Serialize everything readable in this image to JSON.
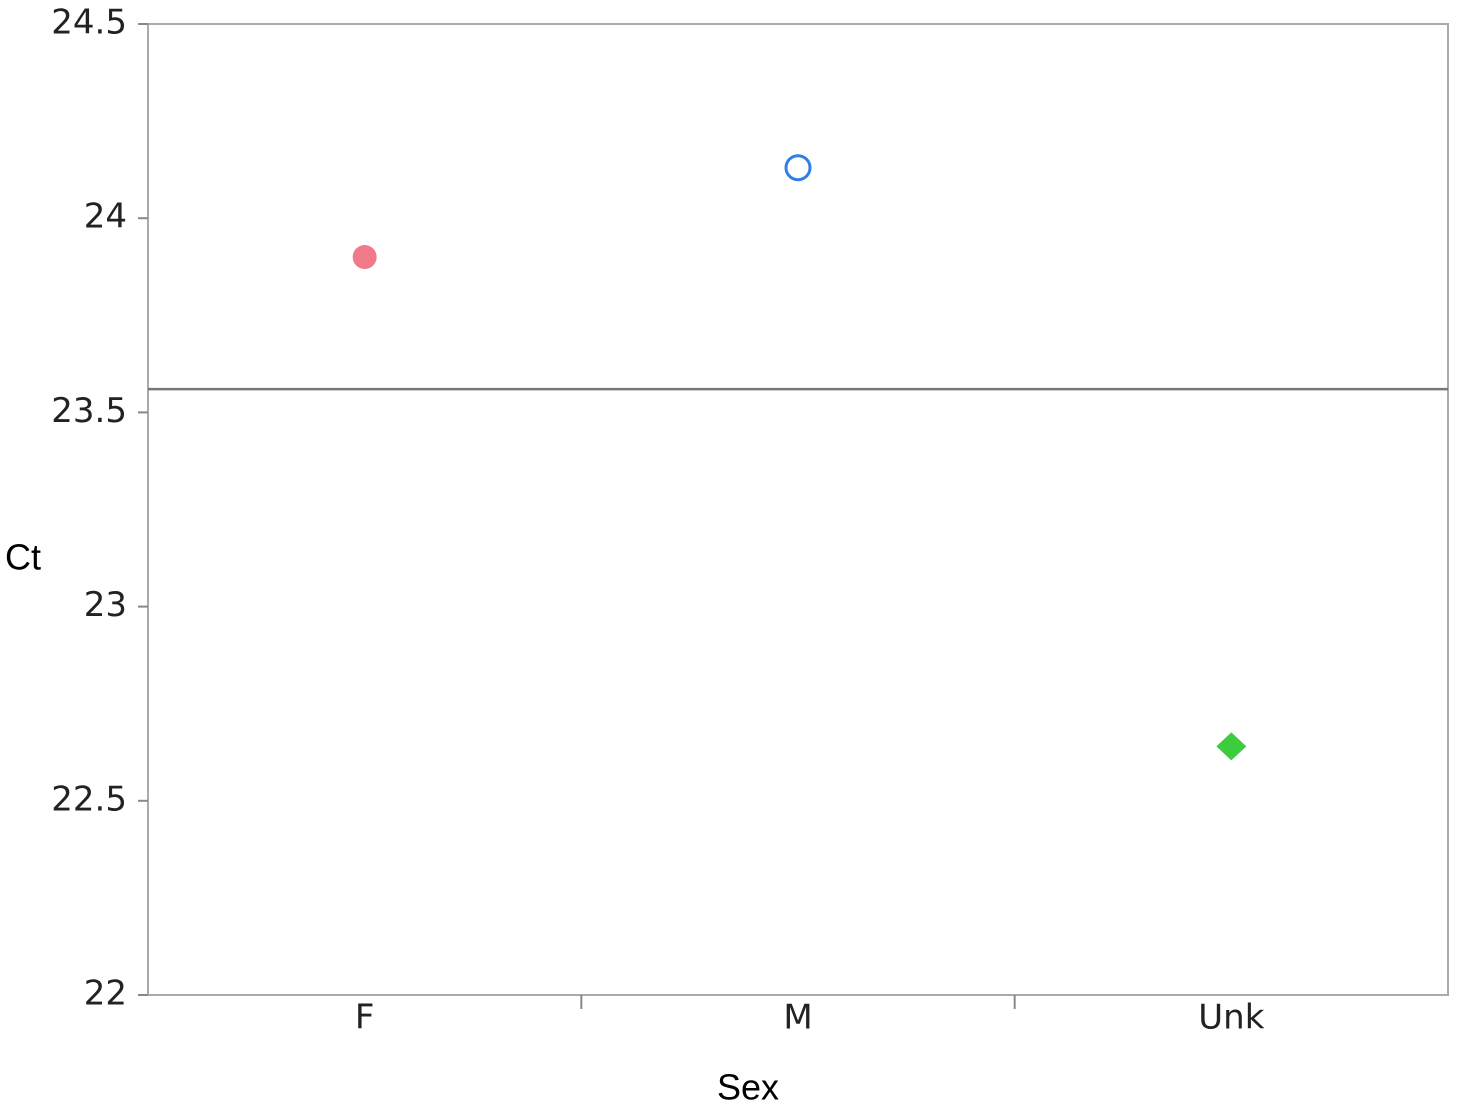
{
  "chart_data": {
    "type": "point",
    "x_label": "Sex",
    "y_label": "Ct",
    "categories": [
      "F",
      "M",
      "Unk"
    ],
    "values": [
      23.9,
      24.13,
      22.64
    ],
    "colors": [
      "#f07a8a",
      "#2f7fe6",
      "#3ccc3c"
    ],
    "markers": [
      "circle",
      "open-circle",
      "diamond"
    ],
    "reference_line": 23.56,
    "ylim": [
      22,
      24.5
    ],
    "yticks": [
      22,
      22.5,
      23,
      23.5,
      24,
      24.5
    ],
    "grid": false
  }
}
